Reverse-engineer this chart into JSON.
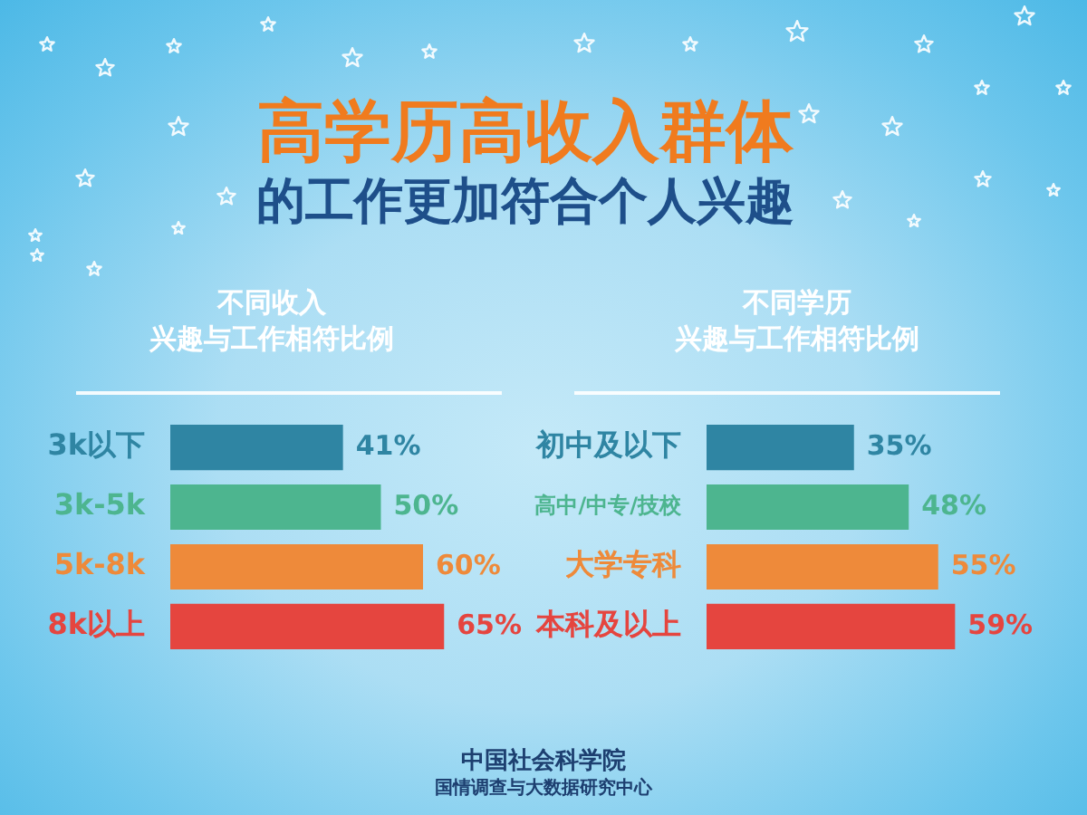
{
  "chart_data": [
    {
      "type": "other",
      "title": "高学历高收入群体",
      "subtitle": "的工作更加符合个人兴趣"
    },
    {
      "type": "bar",
      "orientation": "horizontal",
      "title": "不同收入",
      "subtitle": "兴趣与工作相符比例",
      "categories": [
        "3k以下",
        "3k-5k",
        "5k-8k",
        "8k以上"
      ],
      "values": [
        41,
        50,
        60,
        65
      ],
      "colors": [
        "#2f85a3",
        "#4db58f",
        "#ee8a3a",
        "#e5453f"
      ],
      "value_labels": [
        "41%",
        "50%",
        "60%",
        "65%"
      ],
      "tick_labels": "y"
    },
    {
      "type": "bar",
      "orientation": "horizontal",
      "title": "不同学历",
      "subtitle": "兴趣与工作相符比例",
      "categories": [
        "初中及以下",
        "高中/中专/技校",
        "大学专科",
        "本科及以上"
      ],
      "values": [
        35,
        48,
        55,
        59
      ],
      "colors": [
        "#2f85a3",
        "#4db58f",
        "#ee8a3a",
        "#e5453f"
      ],
      "value_labels": [
        "35%",
        "48%",
        "55%",
        "59%"
      ],
      "tick_labels": "y"
    },
    {
      "type": "other",
      "annotations": [
        "中国社会科学院",
        "国情调查与大数据研究中心"
      ]
    }
  ]
}
